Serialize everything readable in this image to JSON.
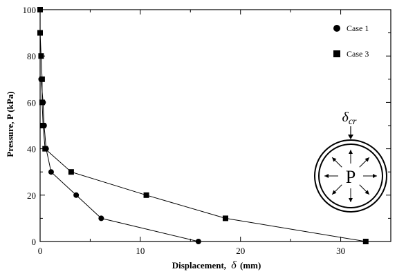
{
  "chart_data": {
    "type": "line",
    "title": "",
    "xlabel": "Displacement, δ (mm)",
    "xlabel_prefix": "Displacement,",
    "xlabel_symbol": "δ",
    "xlabel_suffix": "(mm)",
    "ylabel": "Pressure, P (kPa)",
    "xlim": [
      0,
      35
    ],
    "ylim": [
      0,
      100
    ],
    "x_ticks": [
      0,
      10,
      20,
      30
    ],
    "y_ticks": [
      0,
      20,
      40,
      60,
      80,
      100
    ],
    "grid": false,
    "legend_position": "top-right",
    "series": [
      {
        "name": "Case 1",
        "marker": "circle",
        "color": "#000000",
        "points": [
          {
            "x": 0.1,
            "y": 70
          },
          {
            "x": 0.3,
            "y": 60
          },
          {
            "x": 0.4,
            "y": 50
          },
          {
            "x": 0.6,
            "y": 40
          },
          {
            "x": 1.1,
            "y": 30
          },
          {
            "x": 3.6,
            "y": 20
          },
          {
            "x": 6.1,
            "y": 10
          },
          {
            "x": 15.8,
            "y": 0
          }
        ]
      },
      {
        "name": "Case 3",
        "marker": "square",
        "color": "#000000",
        "points": [
          {
            "x": 0.0,
            "y": 100
          },
          {
            "x": 0.0,
            "y": 90
          },
          {
            "x": 0.1,
            "y": 80
          },
          {
            "x": 0.2,
            "y": 70
          },
          {
            "x": 0.2,
            "y": 60
          },
          {
            "x": 0.3,
            "y": 50
          },
          {
            "x": 0.5,
            "y": 40
          },
          {
            "x": 3.1,
            "y": 30
          },
          {
            "x": 10.6,
            "y": 20
          },
          {
            "x": 18.5,
            "y": 10
          },
          {
            "x": 32.5,
            "y": 0
          }
        ]
      }
    ],
    "inset": {
      "center_label": "P",
      "top_label_symbol": "δ",
      "top_label_subscript": "cr"
    }
  }
}
